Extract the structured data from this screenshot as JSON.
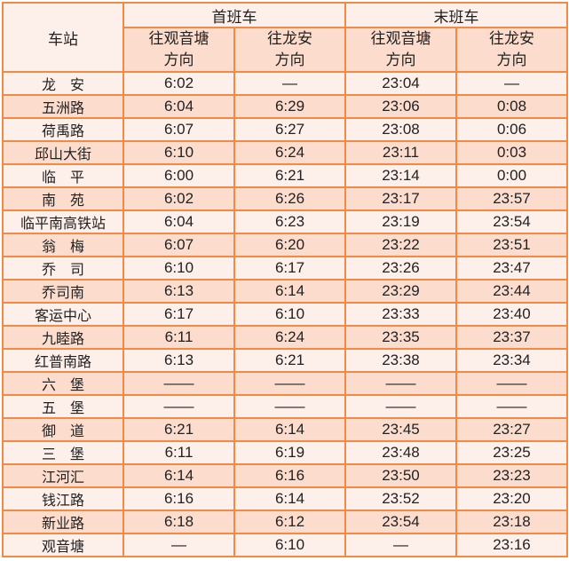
{
  "header": {
    "station": "车站",
    "first": "首班车",
    "last": "末班车",
    "dir_a": "往观音塘\n方向",
    "dir_b": "往龙安\n方向"
  },
  "rows": [
    [
      "龙　安",
      "6:02",
      "—",
      "23:04",
      "—"
    ],
    [
      "五洲路",
      "6:04",
      "6:29",
      "23:06",
      "0:08"
    ],
    [
      "荷禹路",
      "6:07",
      "6:27",
      "23:08",
      "0:06"
    ],
    [
      "邱山大街",
      "6:10",
      "6:24",
      "23:11",
      "0:03"
    ],
    [
      "临　平",
      "6:00",
      "6:21",
      "23:14",
      "0:00"
    ],
    [
      "南　苑",
      "6:02",
      "6:26",
      "23:17",
      "23:57"
    ],
    [
      "临平南高铁站",
      "6:04",
      "6:23",
      "23:19",
      "23:54"
    ],
    [
      "翁　梅",
      "6:07",
      "6:20",
      "23:22",
      "23:51"
    ],
    [
      "乔　司",
      "6:10",
      "6:17",
      "23:26",
      "23:47"
    ],
    [
      "乔司南",
      "6:13",
      "6:14",
      "23:29",
      "23:44"
    ],
    [
      "客运中心",
      "6:17",
      "6:10",
      "23:33",
      "23:40"
    ],
    [
      "九睦路",
      "6:11",
      "6:24",
      "23:35",
      "23:37"
    ],
    [
      "红普南路",
      "6:13",
      "6:21",
      "23:38",
      "23:34"
    ],
    [
      "六　堡",
      "——",
      "——",
      "——",
      "——"
    ],
    [
      "五　堡",
      "——",
      "——",
      "——",
      "——"
    ],
    [
      "御　道",
      "6:21",
      "6:14",
      "23:45",
      "23:27"
    ],
    [
      "三　堡",
      "6:11",
      "6:19",
      "23:48",
      "23:25"
    ],
    [
      "江河汇",
      "6:14",
      "6:16",
      "23:50",
      "23:23"
    ],
    [
      "钱江路",
      "6:16",
      "6:14",
      "23:52",
      "23:20"
    ],
    [
      "新业路",
      "6:18",
      "6:12",
      "23:54",
      "23:18"
    ],
    [
      "观音塘",
      "—",
      "6:10",
      "—",
      "23:16"
    ]
  ],
  "colors": {
    "border": "#f08a45",
    "light": "#fdefe9",
    "dark": "#fcdccd"
  }
}
